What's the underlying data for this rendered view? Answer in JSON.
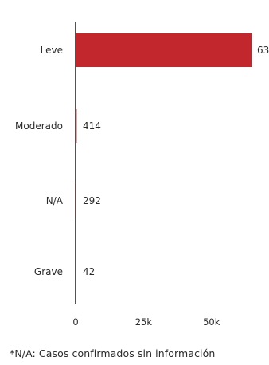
{
  "chart_data": {
    "type": "bar",
    "orientation": "horizontal",
    "categories": [
      "Leve",
      "Moderado",
      "N/A",
      "Grave"
    ],
    "values": [
      63,
      414,
      292,
      42
    ],
    "value_labels": [
      "63",
      "414",
      "292",
      "42"
    ],
    "x_ticks": [
      0,
      25000,
      50000
    ],
    "x_tick_labels": [
      "0",
      "25k",
      "50k"
    ],
    "xlim": [
      0,
      65000
    ],
    "bar_color": "#c1272d",
    "grid": false
  },
  "footnote": "*N/A: Casos confirmados sin información"
}
